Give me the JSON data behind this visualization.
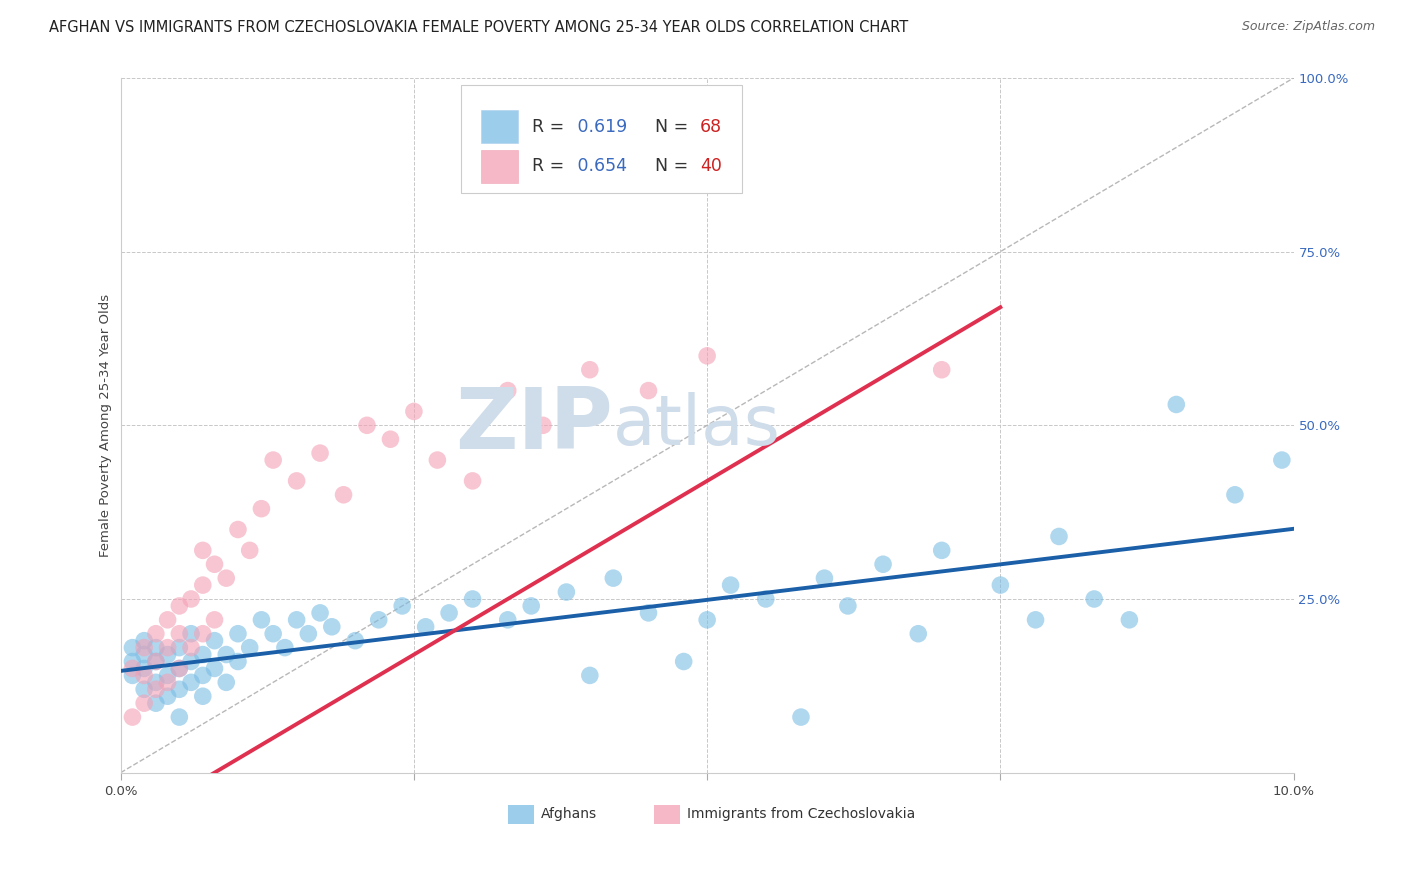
{
  "title": "AFGHAN VS IMMIGRANTS FROM CZECHOSLOVAKIA FEMALE POVERTY AMONG 25-34 YEAR OLDS CORRELATION CHART",
  "source": "Source: ZipAtlas.com",
  "ylabel": "Female Poverty Among 25-34 Year Olds",
  "xlim": [
    0.0,
    0.1
  ],
  "ylim": [
    0.0,
    1.0
  ],
  "xticks": [
    0.0,
    0.025,
    0.05,
    0.075,
    0.1
  ],
  "xtick_labels": [
    "0.0%",
    "",
    "",
    "",
    "10.0%"
  ],
  "yticks_right": [
    0.0,
    0.25,
    0.5,
    0.75,
    1.0
  ],
  "ytick_labels_right": [
    "",
    "25.0%",
    "50.0%",
    "75.0%",
    "100.0%"
  ],
  "blue_R": 0.619,
  "blue_N": 68,
  "pink_R": 0.654,
  "pink_N": 40,
  "blue_color": "#7bbde4",
  "pink_color": "#f4a0b5",
  "blue_line_color": "#1a5fa8",
  "pink_line_color": "#e03050",
  "grid_color": "#c8c8c8",
  "watermark": "ZIPatlas",
  "watermark_color": "#cfdcea",
  "legend_label_blue": "Afghans",
  "legend_label_pink": "Immigrants from Czechoslovakia",
  "blue_scatter_x": [
    0.001,
    0.001,
    0.001,
    0.002,
    0.002,
    0.002,
    0.002,
    0.003,
    0.003,
    0.003,
    0.003,
    0.004,
    0.004,
    0.004,
    0.005,
    0.005,
    0.005,
    0.005,
    0.006,
    0.006,
    0.006,
    0.007,
    0.007,
    0.007,
    0.008,
    0.008,
    0.009,
    0.009,
    0.01,
    0.01,
    0.011,
    0.012,
    0.013,
    0.014,
    0.015,
    0.016,
    0.017,
    0.018,
    0.02,
    0.022,
    0.024,
    0.026,
    0.028,
    0.03,
    0.033,
    0.035,
    0.038,
    0.04,
    0.042,
    0.045,
    0.048,
    0.05,
    0.052,
    0.055,
    0.058,
    0.06,
    0.062,
    0.065,
    0.068,
    0.07,
    0.075,
    0.078,
    0.08,
    0.083,
    0.086,
    0.09,
    0.095,
    0.099
  ],
  "blue_scatter_y": [
    0.14,
    0.16,
    0.18,
    0.12,
    0.15,
    0.17,
    0.19,
    0.1,
    0.13,
    0.16,
    0.18,
    0.11,
    0.14,
    0.17,
    0.08,
    0.12,
    0.15,
    0.18,
    0.13,
    0.16,
    0.2,
    0.11,
    0.14,
    0.17,
    0.15,
    0.19,
    0.13,
    0.17,
    0.16,
    0.2,
    0.18,
    0.22,
    0.2,
    0.18,
    0.22,
    0.2,
    0.23,
    0.21,
    0.19,
    0.22,
    0.24,
    0.21,
    0.23,
    0.25,
    0.22,
    0.24,
    0.26,
    0.14,
    0.28,
    0.23,
    0.16,
    0.22,
    0.27,
    0.25,
    0.08,
    0.28,
    0.24,
    0.3,
    0.2,
    0.32,
    0.27,
    0.22,
    0.34,
    0.25,
    0.22,
    0.53,
    0.4,
    0.45
  ],
  "pink_scatter_x": [
    0.001,
    0.001,
    0.002,
    0.002,
    0.002,
    0.003,
    0.003,
    0.003,
    0.004,
    0.004,
    0.004,
    0.005,
    0.005,
    0.005,
    0.006,
    0.006,
    0.007,
    0.007,
    0.007,
    0.008,
    0.008,
    0.009,
    0.01,
    0.011,
    0.012,
    0.013,
    0.015,
    0.017,
    0.019,
    0.021,
    0.023,
    0.025,
    0.027,
    0.03,
    0.033,
    0.036,
    0.04,
    0.045,
    0.05,
    0.07
  ],
  "pink_scatter_y": [
    0.08,
    0.15,
    0.1,
    0.14,
    0.18,
    0.12,
    0.16,
    0.2,
    0.13,
    0.18,
    0.22,
    0.15,
    0.2,
    0.24,
    0.18,
    0.25,
    0.2,
    0.27,
    0.32,
    0.22,
    0.3,
    0.28,
    0.35,
    0.32,
    0.38,
    0.45,
    0.42,
    0.46,
    0.4,
    0.5,
    0.48,
    0.52,
    0.45,
    0.42,
    0.55,
    0.5,
    0.58,
    0.55,
    0.6,
    0.58
  ],
  "title_fontsize": 10.5,
  "axis_label_fontsize": 9.5,
  "tick_fontsize": 9.5,
  "right_tick_color": "#3a6abf",
  "source_fontsize": 9
}
